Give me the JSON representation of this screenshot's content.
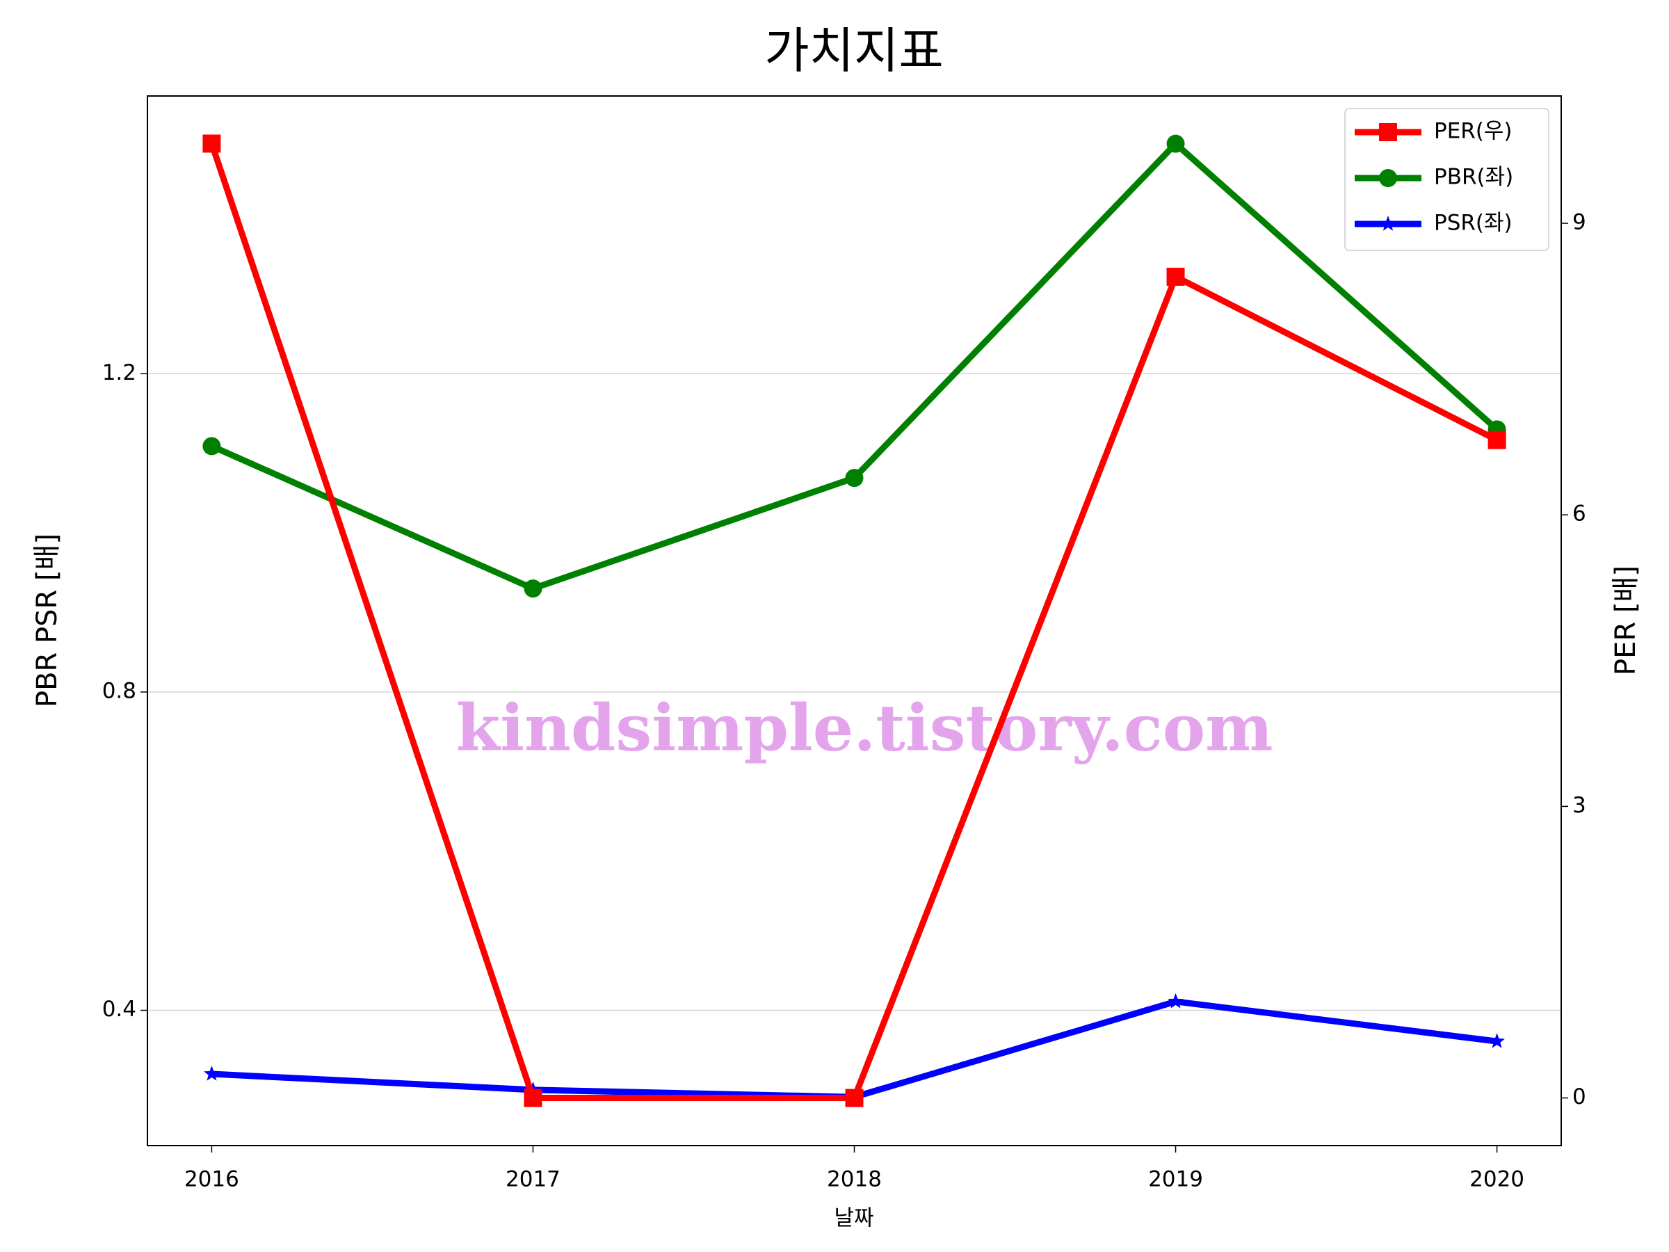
{
  "chart_data": {
    "type": "line",
    "title": "가치지표",
    "xlabel": "날짜",
    "ylabel": "PBR PSR [배]",
    "ylabel_color": "#008000",
    "y2label": "PER [배]",
    "y2label_color": "#ff0000",
    "watermark": "kindsimple.tistory.com",
    "x": [
      2016,
      2017,
      2018,
      2019,
      2020
    ],
    "xlim": [
      2015.8,
      2020.2
    ],
    "xticks": [
      2016,
      2017,
      2018,
      2019,
      2020
    ],
    "ylim": [
      0.23,
      1.549
    ],
    "yticks": [
      0.4,
      0.8,
      1.2
    ],
    "y2lim": [
      -0.49,
      10.31
    ],
    "y2ticks": [
      0,
      3,
      6,
      9
    ],
    "grid": true,
    "legend": "upper right",
    "series": [
      {
        "name": "PER(우)",
        "color": "#ff0000",
        "marker": "square",
        "axis": "y2",
        "values": [
          9.82,
          0,
          0,
          8.45,
          6.77
        ]
      },
      {
        "name": "PBR(좌)",
        "color": "#008000",
        "marker": "circle",
        "values": [
          1.109,
          0.93,
          1.069,
          1.489,
          1.13
        ]
      },
      {
        "name": "PSR(좌)",
        "color": "#0000ff",
        "marker": "star",
        "values": [
          0.32,
          0.3,
          0.291,
          0.411,
          0.361
        ]
      }
    ]
  }
}
